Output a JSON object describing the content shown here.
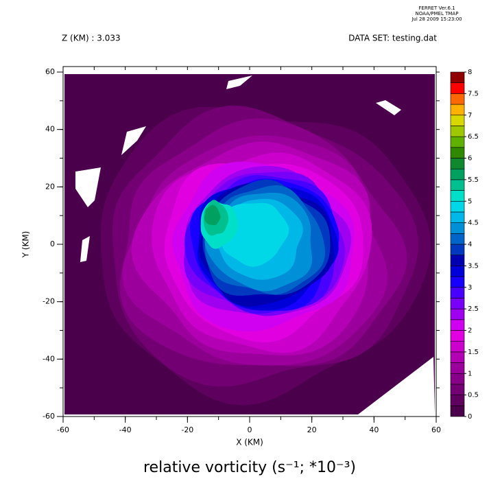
{
  "chart_data": {
    "type": "contour",
    "title": "relative vorticity (s⁻¹; *10⁻³)",
    "header": [
      "FERRET  Ver.6.1",
      "NOAA/PMEL TMAP",
      "Jul 28 2009 15:23:00"
    ],
    "subtitle_left": "Z (KM) : 3.033",
    "subtitle_right": "DATA SET: testing.dat",
    "xlabel": "X (KM)",
    "ylabel": "Y (KM)",
    "xlim": [
      -60,
      60
    ],
    "ylim": [
      -60,
      60
    ],
    "xticks": [
      -60,
      -40,
      -20,
      0,
      20,
      40,
      60
    ],
    "yticks": [
      -60,
      -40,
      -20,
      0,
      20,
      40,
      60
    ],
    "levels": [
      0,
      0.25,
      0.5,
      0.75,
      1,
      1.25,
      1.5,
      1.75,
      2,
      2.25,
      2.5,
      2.75,
      3,
      3.25,
      3.5,
      3.75,
      4,
      4.25,
      4.5,
      4.75,
      5,
      5.25,
      5.5,
      5.75,
      6,
      6.25,
      6.5,
      6.75,
      7,
      7.25,
      7.5,
      7.75,
      8
    ],
    "colors": [
      "#4b004b",
      "#5e005e",
      "#730073",
      "#880088",
      "#9c009c",
      "#b400b4",
      "#cc00cc",
      "#e000e0",
      "#d000f0",
      "#a000f0",
      "#7800f8",
      "#4800ff",
      "#1800ff",
      "#0000d8",
      "#0000b0",
      "#0038c0",
      "#0064c8",
      "#0090d8",
      "#00b8e8",
      "#00d8e8",
      "#00e0c8",
      "#00c090",
      "#00a060",
      "#108830",
      "#308800",
      "#60b000",
      "#a0c800",
      "#d8d800",
      "#ffb000",
      "#ff6800",
      "#ff0000",
      "#900000"
    ],
    "colorbar_ticks": [
      0,
      0.5,
      1,
      1.5,
      2,
      2.5,
      3,
      3.5,
      4,
      4.5,
      5,
      5.5,
      6,
      6.5,
      7,
      7.5,
      8
    ]
  }
}
